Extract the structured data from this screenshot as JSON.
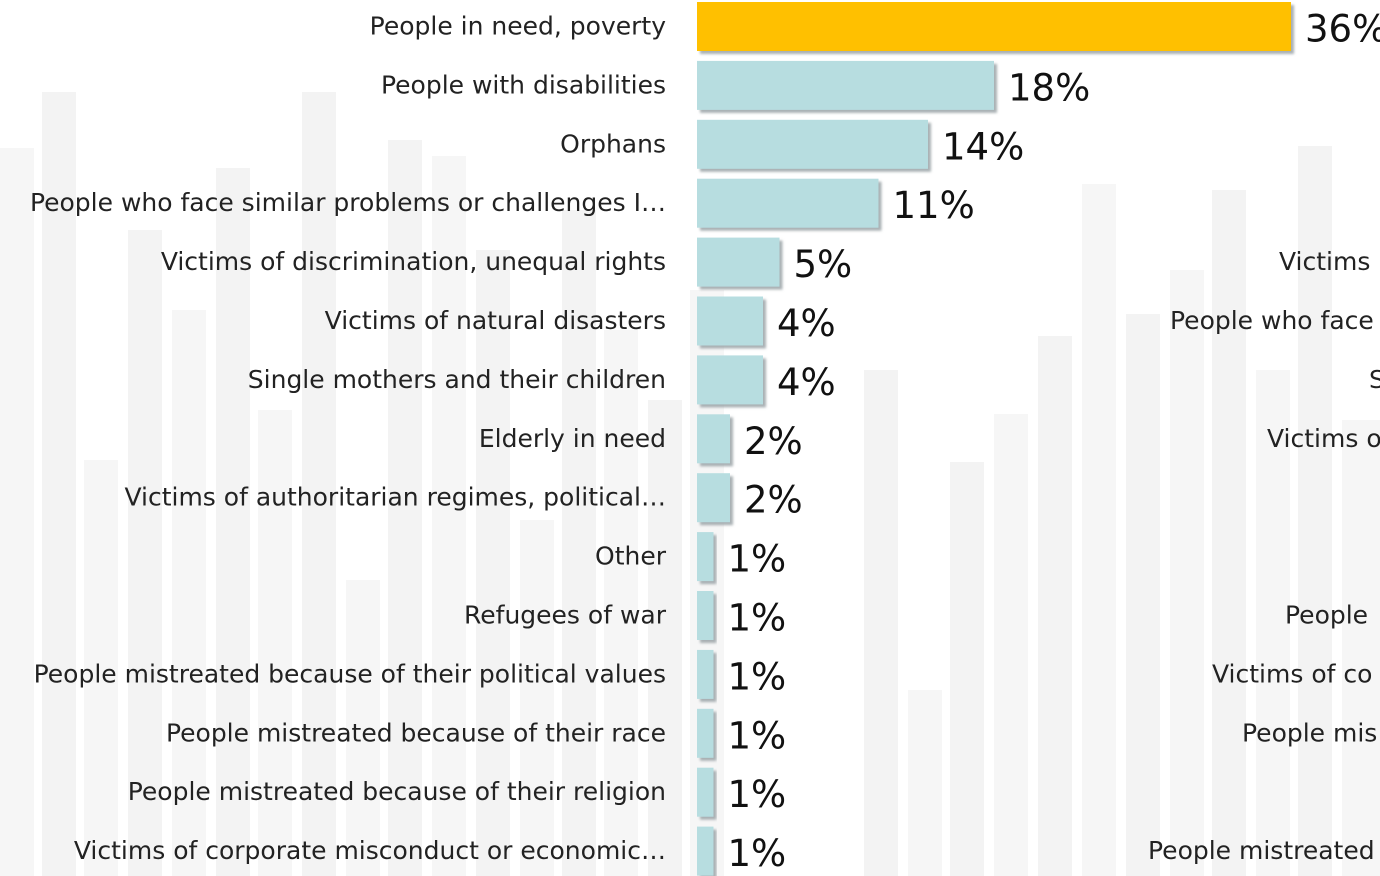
{
  "chart_data": [
    {
      "type": "bar",
      "orientation": "horizontal",
      "categories": [
        "People in need, poverty",
        "People with disabilities",
        "Orphans",
        "People who face similar problems or challenges I…",
        "Victims of discrimination, unequal rights",
        "Victims of natural disasters",
        "Single mothers and their children",
        "Elderly in need",
        "Victims of authoritarian regimes, political…",
        "Other",
        "Refugees of war",
        "People mistreated because of their political values",
        "People mistreated because of their race",
        "People mistreated because of their religion",
        "Victims of corporate misconduct or economic…"
      ],
      "values": [
        36,
        18,
        14,
        11,
        5,
        4,
        4,
        2,
        2,
        1,
        1,
        1,
        1,
        1,
        1
      ],
      "value_labels": [
        "36%",
        "18%",
        "14%",
        "11%",
        "5%",
        "4%",
        "4%",
        "2%",
        "2%",
        "1%",
        "1%",
        "1%",
        "1%",
        "1%",
        "1%"
      ],
      "unit": "%",
      "highlight_index": 0,
      "colors": {
        "highlight": "#FFC000",
        "bar": "#B7DDE0",
        "shadow": "#9aa3a6"
      },
      "grid": false,
      "legend": "none"
    },
    {
      "type": "bar",
      "orientation": "horizontal",
      "partially_visible": true,
      "categories": [
        "Victims",
        "People who face",
        "S",
        "Victims o",
        "People",
        "Victims of co",
        "People mis",
        "People mistreated"
      ]
    }
  ]
}
